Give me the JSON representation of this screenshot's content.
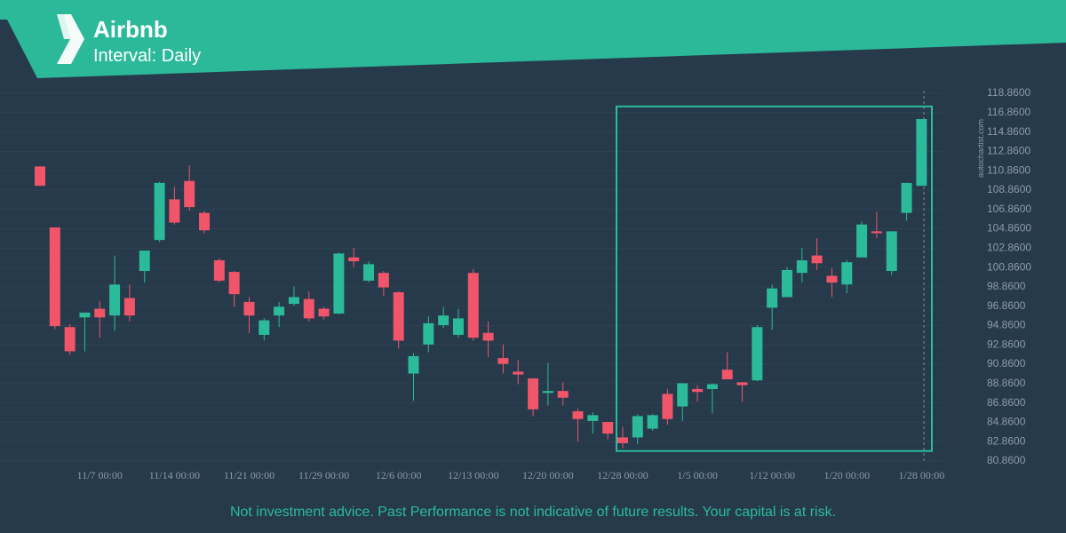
{
  "header": {
    "title": "Airbnb",
    "subtitle": "Interval: Daily"
  },
  "watermark": "autochartist.com",
  "footer": "Not investment advice. Past Performance is not indicative of future results. Your capital is at risk.",
  "chart_data": {
    "type": "candlestick",
    "up_color": "#2bbb9a",
    "down_color": "#f0556a",
    "grid": true,
    "ylim": [
      80.86,
      118.86
    ],
    "yticks": [
      {
        "value": 80.86,
        "label": "80.8600"
      },
      {
        "value": 82.86,
        "label": "82.8600"
      },
      {
        "value": 84.86,
        "label": "84.8600"
      },
      {
        "value": 86.86,
        "label": "86.8600"
      },
      {
        "value": 88.86,
        "label": "88.8600"
      },
      {
        "value": 90.86,
        "label": "90.8600"
      },
      {
        "value": 92.86,
        "label": "92.8600"
      },
      {
        "value": 94.86,
        "label": "94.8600"
      },
      {
        "value": 96.86,
        "label": "96.8600"
      },
      {
        "value": 98.86,
        "label": "98.8600"
      },
      {
        "value": 100.86,
        "label": "100.8600"
      },
      {
        "value": 102.86,
        "label": "102.8600"
      },
      {
        "value": 104.86,
        "label": "104.8600"
      },
      {
        "value": 106.86,
        "label": "106.8600"
      },
      {
        "value": 108.86,
        "label": "108.8600"
      },
      {
        "value": 110.86,
        "label": "110.8600"
      },
      {
        "value": 112.86,
        "label": "112.8600"
      },
      {
        "value": 114.86,
        "label": "114.8600"
      },
      {
        "value": 116.86,
        "label": "116.8600"
      },
      {
        "value": 118.86,
        "label": "118.8600"
      }
    ],
    "categories": [
      null,
      null,
      null,
      null,
      "11/7 00:00",
      null,
      null,
      null,
      null,
      "11/14 00:00",
      null,
      null,
      null,
      null,
      "11/21 00:00",
      null,
      null,
      null,
      null,
      "11/29 00:00",
      null,
      null,
      null,
      null,
      "12/6 00:00",
      null,
      null,
      null,
      null,
      "12/13 00:00",
      null,
      null,
      null,
      null,
      "12/20 00:00",
      null,
      null,
      null,
      null,
      "12/28 00:00",
      null,
      null,
      null,
      null,
      "1/5 00:00",
      null,
      null,
      null,
      null,
      "1/12 00:00",
      null,
      null,
      null,
      null,
      "1/20 00:00",
      null,
      null,
      null,
      null,
      "1/28 00:00"
    ],
    "open": [
      111.3,
      105.0,
      94.7,
      95.7,
      96.6,
      95.9,
      97.7,
      100.5,
      103.7,
      107.9,
      109.8,
      106.5,
      101.6,
      100.4,
      97.3,
      93.9,
      95.9,
      97.1,
      97.6,
      96.6,
      96.1,
      101.9,
      99.5,
      100.3,
      98.3,
      89.9,
      92.9,
      94.9,
      93.9,
      100.3,
      94.1,
      91.5,
      90.1,
      89.4,
      87.9,
      88.1,
      86.0,
      85.0,
      84.9,
      83.3,
      83.3,
      84.2,
      87.8,
      86.5,
      88.3,
      88.3,
      90.3,
      89.0,
      89.2,
      96.7,
      97.8,
      100.3,
      102.1,
      100.0,
      99.1,
      101.9,
      104.6,
      100.5,
      106.5,
      109.3
    ],
    "high": [
      111.3,
      105.0,
      95.0,
      96.2,
      97.4,
      102.1,
      99.1,
      102.6,
      109.7,
      109.2,
      111.4,
      106.7,
      101.8,
      100.5,
      97.8,
      95.6,
      97.3,
      98.9,
      98.4,
      96.8,
      102.4,
      102.9,
      101.5,
      100.5,
      98.4,
      92.0,
      95.8,
      96.8,
      96.6,
      100.7,
      95.3,
      92.9,
      91.3,
      89.4,
      91.0,
      89.0,
      86.3,
      85.9,
      84.9,
      84.4,
      85.7,
      85.7,
      88.3,
      88.9,
      88.7,
      88.9,
      92.1,
      89.0,
      94.9,
      99.1,
      100.9,
      102.9,
      103.9,
      100.8,
      101.6,
      105.6,
      106.6,
      104.6,
      109.6,
      116.2
    ],
    "low": [
      109.3,
      94.5,
      91.8,
      92.2,
      93.6,
      94.3,
      95.3,
      99.3,
      103.5,
      105.3,
      106.7,
      104.4,
      99.3,
      96.8,
      94.1,
      93.3,
      94.7,
      96.9,
      95.3,
      95.5,
      96.0,
      100.9,
      99.3,
      97.9,
      92.5,
      87.1,
      92.1,
      94.6,
      93.6,
      93.3,
      91.6,
      89.9,
      88.8,
      85.5,
      86.6,
      86.6,
      82.9,
      83.7,
      83.1,
      82.2,
      82.6,
      84.0,
      84.6,
      85.0,
      87.0,
      85.8,
      89.3,
      87.0,
      89.1,
      94.4,
      97.8,
      99.3,
      100.6,
      97.8,
      98.2,
      101.9,
      103.9,
      100.1,
      105.7,
      109.3
    ],
    "close": [
      109.3,
      94.8,
      92.2,
      96.2,
      95.7,
      99.1,
      95.9,
      102.6,
      109.6,
      105.5,
      107.1,
      104.7,
      99.5,
      98.1,
      95.9,
      95.4,
      96.8,
      97.8,
      95.6,
      95.8,
      102.3,
      101.5,
      101.2,
      98.8,
      93.3,
      91.7,
      95.1,
      95.9,
      95.6,
      93.6,
      93.3,
      90.9,
      89.8,
      86.2,
      88.1,
      87.4,
      85.2,
      85.6,
      83.7,
      82.7,
      85.5,
      85.6,
      85.2,
      88.9,
      88.0,
      88.8,
      89.3,
      88.7,
      94.7,
      98.7,
      100.6,
      101.6,
      101.3,
      99.3,
      101.4,
      105.3,
      104.4,
      104.6,
      109.6,
      116.2
    ],
    "pattern_range": [
      81.9,
      117.5
    ],
    "pattern_color": "#2bbb9a"
  }
}
